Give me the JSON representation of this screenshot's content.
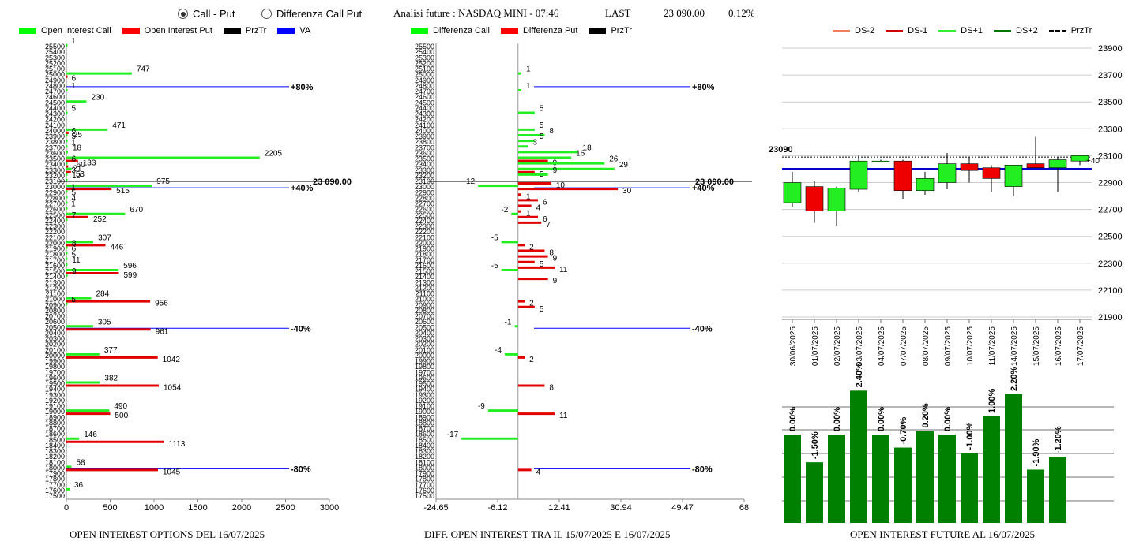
{
  "header": {
    "options": [
      {
        "label": "Call - Put",
        "selected": true
      },
      {
        "label": "Differenza Call Put",
        "selected": false
      }
    ],
    "title": "Analisi future : NASDAQ MINI - 07:46",
    "last_label": "LAST",
    "last_value": "23 090.00",
    "last_change": "0.12%"
  },
  "legends": {
    "oi": [
      {
        "label": "Open Interest Call",
        "color": "#00ff00",
        "kind": "box"
      },
      {
        "label": "Open Interest Put",
        "color": "#ff0000",
        "kind": "box"
      },
      {
        "label": "PrzTr",
        "color": "#000000",
        "kind": "box"
      },
      {
        "label": "VA",
        "color": "#0000ff",
        "kind": "box"
      }
    ],
    "diff": [
      {
        "label": "Differenza Call",
        "color": "#00ff00",
        "kind": "box"
      },
      {
        "label": "Differenza Put",
        "color": "#ff0000",
        "kind": "box"
      },
      {
        "label": "PrzTr",
        "color": "#000000",
        "kind": "box"
      }
    ],
    "candle": [
      {
        "label": "DS-2",
        "color": "#f08060",
        "kind": "line"
      },
      {
        "label": "DS-1",
        "color": "#cc0000",
        "kind": "line"
      },
      {
        "label": "DS+1",
        "color": "#33ee33",
        "kind": "line"
      },
      {
        "label": "DS+2",
        "color": "#007700",
        "kind": "line"
      },
      {
        "label": "PrzTr",
        "color": "#000000",
        "kind": "dash"
      }
    ]
  },
  "captions": {
    "oi": "OPEN INTEREST OPTIONS DEL 16/07/2025",
    "diff": "DIFF. OPEN INTEREST TRA IL 15/07/2025 E 16/07/2025",
    "future": "OPEN INTEREST FUTURE AL 16/07/2025"
  },
  "chart_data": [
    {
      "type": "bar",
      "orientation": "horizontal",
      "strike_range": [
        17500,
        25500
      ],
      "strike_step": 100,
      "xlim": [
        0,
        3000
      ],
      "xticks": [
        0,
        500,
        1000,
        1500,
        2000,
        2500,
        3000
      ],
      "calls": [
        [
          25500,
          1
        ],
        [
          25000,
          747
        ],
        [
          24700,
          1
        ],
        [
          24500,
          230
        ],
        [
          24300,
          5
        ],
        [
          24000,
          471
        ],
        [
          23900,
          6
        ],
        [
          23800,
          5
        ],
        [
          23700,
          1
        ],
        [
          23600,
          18
        ],
        [
          23500,
          2205
        ],
        [
          23400,
          6
        ],
        [
          23300,
          60
        ],
        [
          23200,
          3
        ],
        [
          23100,
          10
        ],
        [
          23000,
          975
        ],
        [
          22900,
          1
        ],
        [
          22800,
          5
        ],
        [
          22700,
          4
        ],
        [
          22600,
          1
        ],
        [
          22500,
          670
        ],
        [
          22400,
          7
        ],
        [
          22000,
          307
        ],
        [
          21900,
          8
        ],
        [
          21800,
          6
        ],
        [
          21700,
          5
        ],
        [
          21600,
          11
        ],
        [
          21500,
          596
        ],
        [
          21400,
          9
        ],
        [
          21000,
          284
        ],
        [
          20900,
          5
        ],
        [
          20500,
          305
        ],
        [
          20000,
          377
        ],
        [
          19500,
          382
        ],
        [
          19000,
          490
        ],
        [
          18500,
          146
        ],
        [
          18000,
          58
        ],
        [
          17600,
          36
        ]
      ],
      "puts": [
        [
          25000,
          6
        ],
        [
          24000,
          25
        ],
        [
          23500,
          133
        ],
        [
          23400,
          21
        ],
        [
          23300,
          53
        ],
        [
          23000,
          515
        ],
        [
          22500,
          252
        ],
        [
          22000,
          446
        ],
        [
          21500,
          599
        ],
        [
          21000,
          956
        ],
        [
          20500,
          961
        ],
        [
          20000,
          1042
        ],
        [
          19500,
          1054
        ],
        [
          19000,
          500
        ],
        [
          18500,
          1113
        ],
        [
          18000,
          1045
        ]
      ],
      "lines": [
        {
          "strike": 24800,
          "label": "+80%",
          "color": "#0000ff"
        },
        {
          "strike": 23000,
          "label": "+40%",
          "color": "#0000ff"
        },
        {
          "strike": 20500,
          "label": "-40%",
          "color": "#0000ff"
        },
        {
          "strike": 18000,
          "label": "-80%",
          "color": "#0000ff"
        }
      ],
      "price_line": {
        "strike": 23100,
        "label": "23 090.00",
        "color": "#000000"
      }
    },
    {
      "type": "bar",
      "orientation": "horizontal",
      "strike_range": [
        17500,
        25500
      ],
      "xlim": [
        -24.65,
        68
      ],
      "xticks": [
        "-24.65",
        "-6.12",
        "12.41",
        "30.94",
        "49.47",
        "68"
      ],
      "calls": [
        [
          25000,
          1
        ],
        [
          24700,
          1
        ],
        [
          24300,
          5
        ],
        [
          24000,
          5
        ],
        [
          23900,
          8
        ],
        [
          23800,
          5
        ],
        [
          23700,
          3
        ],
        [
          23600,
          18
        ],
        [
          23500,
          16
        ],
        [
          23400,
          26
        ],
        [
          23300,
          29
        ],
        [
          23200,
          9
        ],
        [
          23000,
          -12
        ],
        [
          22500,
          -2
        ],
        [
          22000,
          -5
        ],
        [
          21500,
          -5
        ],
        [
          20500,
          -1
        ],
        [
          20000,
          -4
        ],
        [
          19000,
          -9
        ],
        [
          18500,
          -17
        ]
      ],
      "puts": [
        [
          23500,
          9
        ],
        [
          23300,
          5
        ],
        [
          23100,
          10
        ],
        [
          23000,
          30
        ],
        [
          22900,
          1
        ],
        [
          22800,
          6
        ],
        [
          22700,
          4
        ],
        [
          22600,
          1
        ],
        [
          22500,
          6
        ],
        [
          22400,
          7
        ],
        [
          22000,
          2
        ],
        [
          21900,
          8
        ],
        [
          21800,
          9
        ],
        [
          21700,
          5
        ],
        [
          21600,
          11
        ],
        [
          21400,
          9
        ],
        [
          21000,
          2
        ],
        [
          20900,
          5
        ],
        [
          20000,
          2
        ],
        [
          19500,
          8
        ],
        [
          19000,
          11
        ],
        [
          18000,
          4
        ]
      ],
      "lines": [
        {
          "strike": 24800,
          "label": "+80%",
          "color": "#0000ff"
        },
        {
          "strike": 23000,
          "label": "+40%",
          "color": "#0000ff"
        },
        {
          "strike": 20500,
          "label": "-40%",
          "color": "#0000ff"
        },
        {
          "strike": 18000,
          "label": "-80%",
          "color": "#0000ff"
        }
      ],
      "price_line": {
        "strike": 23100,
        "label": "23 090.00",
        "color": "#000000"
      }
    },
    {
      "type": "candlestick",
      "dates": [
        "30/06/2025",
        "01/07/2025",
        "02/07/2025",
        "03/07/2025",
        "04/07/2025",
        "07/07/2025",
        "08/07/2025",
        "09/07/2025",
        "10/07/2025",
        "11/07/2025",
        "14/07/2025",
        "15/07/2025",
        "16/07/2025",
        "17/07/2025"
      ],
      "ohlc": [
        [
          22750,
          22980,
          22720,
          22900
        ],
        [
          22870,
          22910,
          22600,
          22690
        ],
        [
          22690,
          22870,
          22580,
          22860
        ],
        [
          22850,
          23100,
          22830,
          23060
        ],
        [
          23060,
          23070,
          23050,
          23060
        ],
        [
          23060,
          23070,
          22780,
          22840
        ],
        [
          22840,
          22980,
          22810,
          22930
        ],
        [
          22900,
          23120,
          22850,
          23040
        ],
        [
          23040,
          23090,
          22900,
          22990
        ],
        [
          23010,
          23030,
          22830,
          22930
        ],
        [
          22870,
          23030,
          22800,
          23030
        ],
        [
          23040,
          23240,
          23020,
          23010
        ],
        [
          23010,
          23090,
          22830,
          23070
        ],
        [
          23060,
          23100,
          23030,
          23100
        ]
      ],
      "ylim": [
        21900,
        23900
      ],
      "yticks": [
        "21900",
        "22100",
        "22300",
        "22500",
        "22700",
        "22900",
        "23100",
        "23300",
        "23500",
        "23700",
        "23900"
      ],
      "price_level": {
        "value": 23090,
        "label": "23090"
      },
      "va_level": 23000,
      "last_label": "+40"
    },
    {
      "type": "bar",
      "categories": [
        "30/06/2025",
        "01/07/2025",
        "02/07/2025",
        "03/07/2025",
        "04/07/2025",
        "07/07/2025",
        "08/07/2025",
        "09/07/2025",
        "10/07/2025",
        "11/07/2025",
        "14/07/2025",
        "15/07/2025",
        "16/07/2025",
        "17/07/2025"
      ],
      "values": [
        0.0,
        -1.5,
        0.0,
        2.4,
        0.0,
        -0.7,
        0.2,
        0.0,
        -1.0,
        1.0,
        2.2,
        -1.9,
        -1.2
      ],
      "labels": [
        "0.00%",
        "-1.50%",
        "0.00%",
        "2.40%",
        "0.00%",
        "-0.70%",
        "0.20%",
        "0.00%",
        "-1.00%",
        "1.00%",
        "2.20%",
        "-1.90%",
        "-1.20%"
      ],
      "color": "#008000"
    }
  ]
}
